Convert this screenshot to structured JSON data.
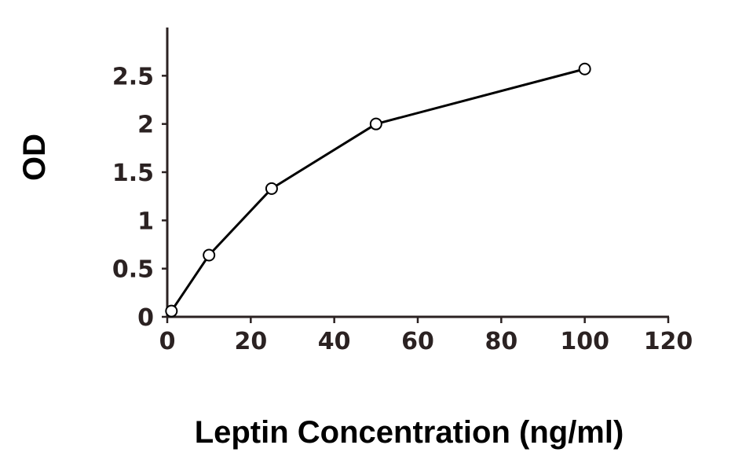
{
  "chart_data": {
    "type": "line",
    "title": "",
    "xlabel": "Leptin Concentration (ng/ml)",
    "ylabel": "OD",
    "xlim": [
      0,
      120
    ],
    "ylim": [
      0,
      3
    ],
    "x_ticks": [
      "0",
      "20",
      "40",
      "60",
      "80",
      "100",
      "120"
    ],
    "y_ticks": [
      "0",
      "0.5",
      "1",
      "1.5",
      "2",
      "2.5"
    ],
    "grid": false,
    "legend": "none",
    "series": [
      {
        "x": [
          1,
          10,
          25,
          50,
          100
        ],
        "y": [
          0.06,
          0.64,
          1.33,
          2.0,
          2.57
        ]
      }
    ],
    "colors": {
      "axis": "#2b2222",
      "line": "#000000",
      "marker_fill": "#ffffff"
    }
  }
}
